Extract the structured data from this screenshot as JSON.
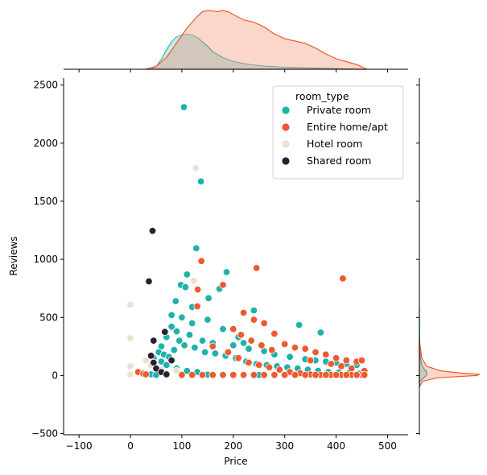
{
  "chart_data": {
    "type": "scatter",
    "title": "",
    "xlabel": "Price",
    "ylabel": "Reviews",
    "xlim": [
      -130,
      540
    ],
    "ylim": [
      -510,
      2560
    ],
    "x_ticks": [
      -100,
      0,
      100,
      200,
      300,
      400,
      500
    ],
    "x_tick_labels": [
      "−100",
      "0",
      "100",
      "200",
      "300",
      "400",
      "500"
    ],
    "y_ticks": [
      -500,
      0,
      500,
      1000,
      1500,
      2000,
      2500
    ],
    "y_tick_labels": [
      "−500",
      "0",
      "500",
      "1000",
      "1500",
      "2000",
      "2500"
    ],
    "grid": false,
    "legend": {
      "title": "room_type",
      "placement": "top-right"
    },
    "series": [
      {
        "name": "Private room",
        "color": "#20b2aa",
        "points": [
          [
            104,
            2310
          ],
          [
            137,
            1670
          ],
          [
            128,
            1095
          ],
          [
            187,
            890
          ],
          [
            110,
            870
          ],
          [
            98,
            780
          ],
          [
            107,
            760
          ],
          [
            173,
            745
          ],
          [
            152,
            665
          ],
          [
            88,
            640
          ],
          [
            130,
            600
          ],
          [
            120,
            590
          ],
          [
            240,
            560
          ],
          [
            328,
            435
          ],
          [
            370,
            370
          ],
          [
            300,
            270
          ],
          [
            60,
            250
          ],
          [
            70,
            330
          ],
          [
            80,
            420
          ],
          [
            90,
            380
          ],
          [
            115,
            350
          ],
          [
            140,
            300
          ],
          [
            160,
            280
          ],
          [
            200,
            260
          ],
          [
            230,
            230
          ],
          [
            260,
            210
          ],
          [
            280,
            180
          ],
          [
            310,
            160
          ],
          [
            340,
            140
          ],
          [
            360,
            130
          ],
          [
            380,
            120
          ],
          [
            400,
            110
          ],
          [
            420,
            100
          ],
          [
            440,
            90
          ],
          [
            45,
            150
          ],
          [
            55,
            200
          ],
          [
            65,
            180
          ],
          [
            75,
            160
          ],
          [
            85,
            220
          ],
          [
            95,
            300
          ],
          [
            105,
            260
          ],
          [
            125,
            240
          ],
          [
            145,
            200
          ],
          [
            165,
            190
          ],
          [
            185,
            170
          ],
          [
            205,
            150
          ],
          [
            225,
            120
          ],
          [
            245,
            100
          ],
          [
            265,
            90
          ],
          [
            285,
            80
          ],
          [
            305,
            70
          ],
          [
            325,
            60
          ],
          [
            345,
            50
          ],
          [
            365,
            40
          ],
          [
            385,
            30
          ],
          [
            405,
            25
          ],
          [
            425,
            20
          ],
          [
            445,
            15
          ],
          [
            40,
            10
          ],
          [
            50,
            5
          ],
          [
            100,
            10
          ],
          [
            150,
            8
          ],
          [
            200,
            6
          ],
          [
            250,
            4
          ],
          [
            300,
            3
          ],
          [
            350,
            2
          ],
          [
            400,
            2
          ],
          [
            450,
            1
          ],
          [
            120,
            450
          ],
          [
            100,
            500
          ],
          [
            80,
            520
          ],
          [
            150,
            480
          ],
          [
            180,
            400
          ],
          [
            210,
            330
          ],
          [
            220,
            280
          ],
          [
            60,
            120
          ],
          [
            70,
            90
          ],
          [
            90,
            60
          ],
          [
            110,
            40
          ],
          [
            130,
            30
          ]
        ]
      },
      {
        "name": "Entire home/apt",
        "color": "#ee5a30",
        "points": [
          [
            138,
            985
          ],
          [
            245,
            925
          ],
          [
            413,
            835
          ],
          [
            131,
            740
          ],
          [
            180,
            780
          ],
          [
            130,
            595
          ],
          [
            220,
            540
          ],
          [
            240,
            480
          ],
          [
            260,
            450
          ],
          [
            280,
            360
          ],
          [
            300,
            270
          ],
          [
            320,
            240
          ],
          [
            340,
            230
          ],
          [
            360,
            200
          ],
          [
            380,
            180
          ],
          [
            400,
            150
          ],
          [
            420,
            130
          ],
          [
            440,
            120
          ],
          [
            450,
            130
          ],
          [
            350,
            130
          ],
          [
            390,
            100
          ],
          [
            410,
            80
          ],
          [
            430,
            60
          ],
          [
            455,
            40
          ],
          [
            15,
            30
          ],
          [
            25,
            15
          ],
          [
            30,
            10
          ],
          [
            160,
            250
          ],
          [
            190,
            200
          ],
          [
            210,
            150
          ],
          [
            230,
            110
          ],
          [
            250,
            90
          ],
          [
            270,
            70
          ],
          [
            290,
            50
          ],
          [
            310,
            30
          ],
          [
            330,
            20
          ],
          [
            350,
            10
          ],
          [
            370,
            5
          ],
          [
            390,
            5
          ],
          [
            410,
            5
          ],
          [
            430,
            5
          ],
          [
            450,
            5
          ],
          [
            100,
            5
          ],
          [
            120,
            5
          ],
          [
            140,
            5
          ],
          [
            160,
            5
          ],
          [
            180,
            5
          ],
          [
            200,
            5
          ],
          [
            220,
            5
          ],
          [
            240,
            5
          ],
          [
            260,
            5
          ],
          [
            280,
            5
          ],
          [
            300,
            5
          ],
          [
            320,
            5
          ],
          [
            340,
            5
          ],
          [
            360,
            5
          ],
          [
            380,
            5
          ],
          [
            400,
            5
          ],
          [
            420,
            5
          ],
          [
            440,
            5
          ],
          [
            455,
            5
          ],
          [
            200,
            400
          ],
          [
            215,
            350
          ],
          [
            235,
            300
          ],
          [
            255,
            260
          ],
          [
            275,
            220
          ]
        ]
      },
      {
        "name": "Hotel room",
        "color": "#ede0d0",
        "points": [
          [
            127,
            1785
          ],
          [
            123,
            815
          ],
          [
            0,
            610
          ],
          [
            0,
            320
          ],
          [
            0,
            80
          ],
          [
            0,
            10
          ],
          [
            30,
            130
          ],
          [
            40,
            90
          ],
          [
            60,
            50
          ],
          [
            90,
            40
          ]
        ]
      },
      {
        "name": "Shared room",
        "color": "#2a1f2d",
        "points": [
          [
            43,
            1245
          ],
          [
            36,
            810
          ],
          [
            67,
            375
          ],
          [
            45,
            300
          ],
          [
            40,
            170
          ],
          [
            80,
            130
          ],
          [
            45,
            110
          ],
          [
            50,
            60
          ],
          [
            60,
            30
          ],
          [
            70,
            10
          ]
        ]
      }
    ],
    "marginal_x": {
      "type": "kde",
      "series": [
        {
          "name": "Private room",
          "x": [
            40,
            50,
            60,
            70,
            80,
            90,
            100,
            110,
            120,
            130,
            140,
            150,
            160,
            180,
            200,
            220,
            240,
            260,
            300,
            350,
            400,
            460
          ],
          "density": [
            0.0,
            0.08,
            0.28,
            0.55,
            0.78,
            0.92,
            0.98,
            1.0,
            0.97,
            0.9,
            0.78,
            0.65,
            0.5,
            0.33,
            0.22,
            0.16,
            0.12,
            0.09,
            0.06,
            0.04,
            0.02,
            0.0
          ]
        },
        {
          "name": "Entire home/apt",
          "x": [
            30,
            50,
            70,
            90,
            110,
            130,
            140,
            150,
            160,
            170,
            180,
            190,
            200,
            220,
            240,
            260,
            280,
            300,
            320,
            340,
            360,
            380,
            400,
            420,
            440,
            460
          ],
          "density": [
            0.0,
            0.05,
            0.2,
            0.45,
            0.7,
            0.9,
            0.98,
            1.0,
            0.99,
            0.98,
            1.0,
            0.98,
            0.93,
            0.84,
            0.8,
            0.72,
            0.6,
            0.52,
            0.48,
            0.44,
            0.36,
            0.26,
            0.18,
            0.13,
            0.08,
            0.0
          ]
        }
      ]
    },
    "marginal_y": {
      "type": "kde",
      "series": [
        {
          "name": "Private room",
          "y": [
            -100,
            -50,
            0,
            30,
            60,
            100,
            150,
            200,
            300,
            400,
            600
          ],
          "density": [
            0.0,
            0.05,
            0.95,
            1.0,
            0.6,
            0.3,
            0.15,
            0.08,
            0.04,
            0.02,
            0.0
          ]
        },
        {
          "name": "Entire home/apt",
          "y": [
            -100,
            -50,
            -20,
            0,
            10,
            20,
            40,
            80,
            150,
            300
          ],
          "density": [
            0.0,
            0.05,
            0.3,
            0.95,
            1.0,
            0.7,
            0.35,
            0.12,
            0.04,
            0.0
          ]
        }
      ]
    }
  }
}
